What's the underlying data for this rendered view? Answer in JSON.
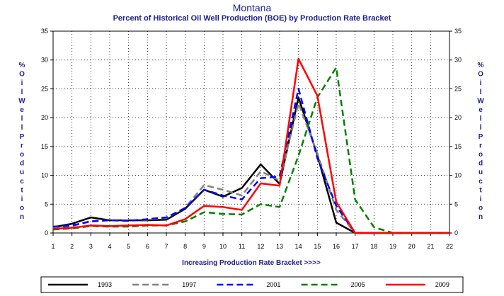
{
  "chart_data": {
    "type": "line",
    "title": "Montana",
    "subtitle": "Percent of Historical Oil Well Production (BOE) by Production Rate Bracket",
    "xlabel": "Increasing Production Rate Bracket >>>>",
    "ylabel": "% Oil Well Production",
    "x": [
      1,
      2,
      3,
      4,
      5,
      6,
      7,
      8,
      9,
      10,
      11,
      12,
      13,
      14,
      15,
      16,
      17,
      18,
      19,
      20,
      21,
      22
    ],
    "xlim": [
      1,
      22
    ],
    "ylim": [
      0,
      35
    ],
    "yticks": [
      0,
      5,
      10,
      15,
      20,
      25,
      30,
      35
    ],
    "grid": true,
    "legend_position": "bottom",
    "series": [
      {
        "name": "1993",
        "color": "#000000",
        "dash": "solid",
        "values": [
          1.0,
          1.6,
          2.7,
          2.2,
          2.2,
          2.2,
          2.3,
          4.2,
          7.5,
          6.3,
          7.8,
          11.9,
          8.5,
          23.5,
          13.5,
          1.8,
          0.0,
          0.0,
          0.0,
          0.0,
          0.0,
          0.0
        ]
      },
      {
        "name": "1997",
        "color": "#808080",
        "dash": "dashed",
        "values": [
          1.0,
          1.2,
          2.1,
          2.2,
          2.2,
          2.3,
          2.6,
          4.4,
          8.3,
          7.5,
          6.5,
          10.7,
          9.1,
          22.5,
          13.8,
          4.0,
          0.0,
          0.0,
          0.0,
          0.0,
          0.0,
          0.0
        ]
      },
      {
        "name": "2001",
        "color": "#0000ff",
        "dash": "dashed",
        "values": [
          1.1,
          1.3,
          2.0,
          2.2,
          2.1,
          2.4,
          2.7,
          4.3,
          7.5,
          6.5,
          5.8,
          9.5,
          9.8,
          25.0,
          13.0,
          4.7,
          0.0,
          0.0,
          0.0,
          0.0,
          0.0,
          0.0
        ]
      },
      {
        "name": "2005",
        "color": "#008000",
        "dash": "dashed",
        "values": [
          0.6,
          0.8,
          1.2,
          1.1,
          1.1,
          1.3,
          1.3,
          2.0,
          3.6,
          3.3,
          3.2,
          5.0,
          4.5,
          13.4,
          23.5,
          28.7,
          5.8,
          1.0,
          0.0,
          0.0,
          0.0,
          0.0
        ]
      },
      {
        "name": "2009",
        "color": "#ff0000",
        "dash": "solid",
        "values": [
          0.7,
          0.9,
          1.3,
          1.2,
          1.3,
          1.4,
          1.3,
          2.4,
          4.7,
          4.5,
          4.0,
          8.6,
          8.2,
          30.2,
          23.8,
          5.4,
          0.0,
          0.0,
          0.0,
          0.0,
          0.0,
          0.0
        ]
      }
    ]
  }
}
